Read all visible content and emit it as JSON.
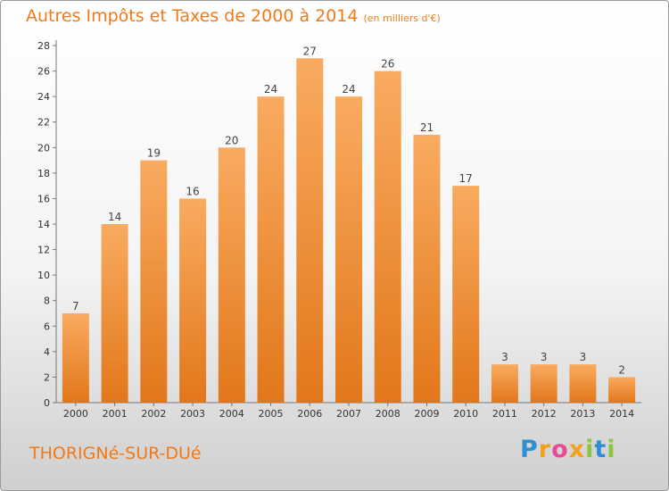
{
  "title": "Autres Impôts et Taxes de 2000 à 2014",
  "subtitle": "(en milliers d'€)",
  "town": "THORIGNé-SUR-DUé",
  "logo": {
    "text": "Proxiti",
    "letters": [
      "P",
      "r",
      "o",
      "x",
      "i",
      "t",
      "i"
    ]
  },
  "colors": {
    "accent": "#ef7a1a",
    "bar_light": "#f8a85c",
    "bar_dark": "#e47a1c"
  },
  "chart_data": {
    "type": "bar",
    "title": "Autres Impôts et Taxes de 2000 à 2014",
    "subtitle": "(en milliers d'€)",
    "categories": [
      "2000",
      "2001",
      "2002",
      "2003",
      "2004",
      "2005",
      "2006",
      "2007",
      "2008",
      "2009",
      "2010",
      "2011",
      "2012",
      "2013",
      "2014"
    ],
    "values": [
      7,
      14,
      19,
      16,
      20,
      24,
      27,
      24,
      26,
      21,
      17,
      3,
      3,
      3,
      2
    ],
    "ylim": [
      0,
      28
    ],
    "yticks": [
      0,
      2,
      4,
      6,
      8,
      10,
      12,
      14,
      16,
      18,
      20,
      22,
      24,
      26,
      28
    ],
    "grid": false,
    "data_labels": true
  }
}
